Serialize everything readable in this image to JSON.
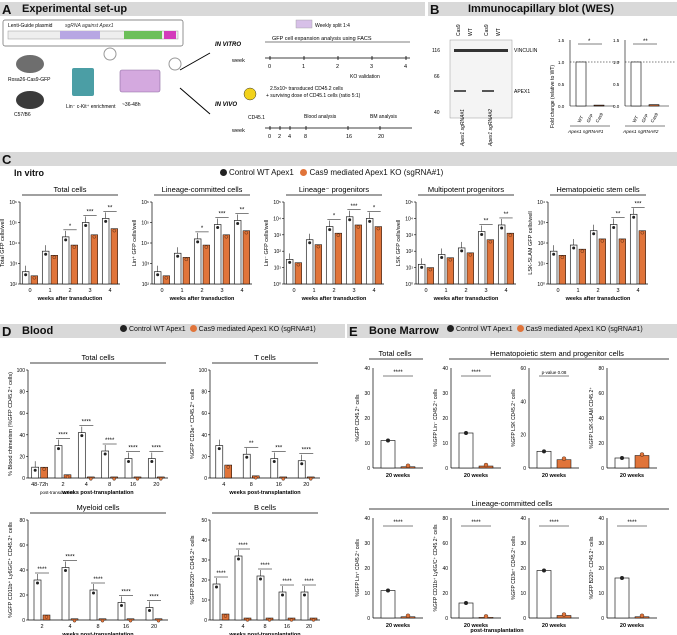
{
  "colors": {
    "control": "#222222",
    "ko": "#e0743a",
    "band": "#d9d9d9"
  },
  "panel_a": {
    "letter": "A",
    "title": "Experimental set-up",
    "plasmid_label": "Lenti-Guide plasmid",
    "sgrna_label": "sgRNA against Apex1",
    "mouse1": "Rosa26-Cas9-GFP",
    "mouse2": "C57/B6",
    "enrich": "Lin⁻ c-Kit⁺ enrichment",
    "time": "~36-48h",
    "in_vitro": "IN VITRO",
    "in_vivo": "IN VIVO",
    "split": "Weekly split 1:4",
    "vitro_text": "GFP cell expansion analysis using FACS",
    "ko_validation": "KO validation",
    "week": "week",
    "vitro_weeks": [
      "0",
      "1",
      "2",
      "3",
      "4"
    ],
    "vivo_text1": "2.5x10⁵ transduced CD45.2 cells",
    "vivo_text2": "+ surviving dose of CD45.1 cells (ratio 5:1)",
    "cd451": "CD45.1",
    "vivo_weeks": [
      "0",
      "2",
      "4",
      "8",
      "16",
      "20"
    ],
    "blood_analysis": "Blood analysis",
    "bm_analysis": "BM analysis"
  },
  "panel_b": {
    "letter": "B",
    "title": "Immunocapillary blot (WES)",
    "mw": [
      "116",
      "66",
      "40"
    ],
    "lanes": [
      "Cas9",
      "WT",
      "Cas9",
      "WT"
    ],
    "vinculin": "VINCULIN",
    "apex1": "APEX1",
    "bottom_labels": [
      "Apex1 sgRNA#1",
      "Apex1 sgRNA#2"
    ],
    "ylabel": "Fold change (relative to WT)",
    "yticks": [
      "0.0",
      "0.5",
      "1.0",
      "1.5"
    ],
    "groups": [
      {
        "xlabels": [
          "WT",
          "GFP",
          "Cas9"
        ],
        "caption": "Apex1 sgRNA#1",
        "sig": "*",
        "values": [
          1.0,
          0.02
        ]
      },
      {
        "xlabels": [
          "WT",
          "GFP",
          "Cas9"
        ],
        "caption": "Apex1 sgRNA#2",
        "sig": "**",
        "values": [
          1.0,
          0.03
        ]
      }
    ]
  },
  "panel_c": {
    "letter": "C",
    "title": "In vitro",
    "legend_control": "Control WT Apex1",
    "legend_ko": "Cas9 mediated Apex1 KO (sgRNA#1)",
    "xlabel": "weeks after transduction",
    "weeks": [
      "0",
      "1",
      "2",
      "3",
      "4"
    ],
    "charts": [
      {
        "title": "Total cells",
        "ylabel": "Total GFP cells/well",
        "yticks": [
          "10²",
          "10³",
          "10⁴",
          "10⁵",
          "10⁶"
        ],
        "sig": [
          "",
          "",
          "*",
          "***",
          "**"
        ],
        "control": [
          2.6,
          3.6,
          4.3,
          5.0,
          5.2
        ],
        "ko": [
          2.4,
          3.4,
          3.9,
          4.4,
          4.7
        ]
      },
      {
        "title": "Lineage-committed cells",
        "ylabel": "Lin⁺ GFP cells/well",
        "yticks": [
          "10²",
          "10³",
          "10⁴",
          "10⁵",
          "10⁶"
        ],
        "sig": [
          "",
          "",
          "*",
          "***",
          "**"
        ],
        "control": [
          2.6,
          3.5,
          4.2,
          4.9,
          5.1
        ],
        "ko": [
          2.4,
          3.3,
          3.9,
          4.4,
          4.6
        ]
      },
      {
        "title": "Lineage⁻ progenitors",
        "ylabel": "Lin⁻ GFP cells/well",
        "yticks": [
          "10⁰",
          "10¹",
          "10²",
          "10³",
          "10⁴",
          "10⁵"
        ],
        "sig": [
          "",
          "",
          "*",
          "***",
          "*"
        ],
        "control": [
          1.5,
          2.7,
          3.5,
          4.1,
          4.0
        ],
        "ko": [
          1.3,
          2.4,
          3.1,
          3.6,
          3.5
        ]
      },
      {
        "title": "Multipotent progenitors",
        "ylabel": "LSK GFP cells/well",
        "yticks": [
          "10⁰",
          "10¹",
          "10²",
          "10³",
          "10⁴",
          "10⁵"
        ],
        "sig": [
          "",
          "",
          "",
          "**",
          "**"
        ],
        "control": [
          1.2,
          1.8,
          2.2,
          3.2,
          3.6
        ],
        "ko": [
          1.0,
          1.6,
          1.9,
          2.7,
          3.1
        ]
      },
      {
        "title": "Hematopoietic stem cells",
        "ylabel": "LSK-SLAM GFP cells/well",
        "yticks": [
          "10⁰",
          "10¹",
          "10²",
          "10³",
          "10⁴"
        ],
        "sig": [
          "",
          "",
          "",
          "**",
          "***"
        ],
        "control": [
          1.6,
          1.9,
          2.6,
          2.9,
          3.4
        ],
        "ko": [
          1.4,
          1.7,
          2.2,
          2.2,
          2.6
        ]
      }
    ]
  },
  "panel_d": {
    "letter": "D",
    "title": "Blood",
    "legend_control": "Control WT Apex1",
    "legend_ko": "Cas9 mediated Apex1 KO (sgRNA#1)",
    "xlabel": "weeks post-transplantation",
    "charts": [
      {
        "title": "Total cells",
        "ylabel": "% Blood chimerism (%GFP CD45.2⁺ cells)",
        "weeks": [
          "48-72h",
          "2",
          "4",
          "8",
          "16",
          "20"
        ],
        "yticks": [
          "0",
          "20",
          "40",
          "60",
          "80",
          "100"
        ],
        "ymax": 100,
        "sig": [
          "",
          "****",
          "****",
          "****",
          "****",
          "****"
        ],
        "control": [
          10,
          30,
          42,
          25,
          18,
          18
        ],
        "ko": [
          10,
          3,
          1,
          1,
          1,
          1
        ],
        "note": "post-transduction"
      },
      {
        "title": "T cells",
        "ylabel": "%GFP CD3e⁺ CD45.2⁺ cells",
        "weeks": [
          "4",
          "8",
          "16",
          "20"
        ],
        "yticks": [
          "0",
          "20",
          "40",
          "60",
          "80",
          "100"
        ],
        "ymax": 100,
        "sig": [
          "",
          "**",
          "***",
          "****"
        ],
        "control": [
          30,
          22,
          18,
          16
        ],
        "ko": [
          12,
          2,
          1,
          1
        ]
      },
      {
        "title": "Myeloid cells",
        "ylabel": "%GFP CD11b⁺ Ly6G/C⁺ CD45.2⁺ cells",
        "weeks": [
          "2",
          "4",
          "8",
          "16",
          "20"
        ],
        "yticks": [
          "0",
          "20",
          "40",
          "60",
          "80"
        ],
        "ymax": 80,
        "sig": [
          "****",
          "****",
          "****",
          "****",
          "****"
        ],
        "control": [
          32,
          42,
          24,
          14,
          10
        ],
        "ko": [
          4,
          1,
          1,
          1,
          1
        ]
      },
      {
        "title": "B cells",
        "ylabel": "%GFP B220⁺ CD45.2⁺ cells",
        "weeks": [
          "2",
          "4",
          "8",
          "16",
          "20"
        ],
        "yticks": [
          "0",
          "10",
          "20",
          "30",
          "40",
          "50"
        ],
        "ymax": 50,
        "sig": [
          "****",
          "****",
          "****",
          "****",
          "****"
        ],
        "control": [
          18,
          32,
          22,
          14,
          14
        ],
        "ko": [
          3,
          1,
          1,
          1,
          1
        ]
      }
    ]
  },
  "panel_e": {
    "letter": "E",
    "title": "Bone Marrow",
    "legend_control": "Control WT Apex1",
    "legend_ko": "Cas9 mediated Apex1 KO (sgRNA#1)",
    "xlabel": "20 weeks",
    "xnote": "post-transplantation",
    "headers": [
      "Total cells",
      "Hematopoietic stem and progenitor cells",
      "Lineage-committed cells"
    ],
    "charts": [
      {
        "ylabel": "%GFP CD45.2⁺ cells",
        "yticks": [
          "0",
          "10",
          "20",
          "30",
          "40"
        ],
        "ymax": 40,
        "sig": "****",
        "control": 11,
        "ko": 0.5
      },
      {
        "ylabel": "%GFP Lin⁻ CD45.2⁺ cells",
        "yticks": [
          "0",
          "10",
          "20",
          "30",
          "40"
        ],
        "ymax": 40,
        "sig": "****",
        "control": 14,
        "ko": 0.8
      },
      {
        "ylabel": "%GFP LSK CD45.2⁺ cells",
        "yticks": [
          "0",
          "20",
          "40",
          "60"
        ],
        "ymax": 60,
        "sig": "p-value 0.08",
        "control": 10,
        "ko": 5
      },
      {
        "ylabel": "%GFP LSK-SLAM CD45.2⁺",
        "yticks": [
          "0",
          "20",
          "40",
          "60",
          "80"
        ],
        "ymax": 80,
        "sig": "",
        "control": 8,
        "ko": 10
      },
      {
        "ylabel": "%GFP Lin⁺ CD45.2⁺ cells",
        "yticks": [
          "0",
          "10",
          "20",
          "30",
          "40"
        ],
        "ymax": 40,
        "sig": "****",
        "control": 11,
        "ko": 0.5
      },
      {
        "ylabel": "%GFP CD11b⁺ Ly6G/C⁺ CD45.2⁺ cells",
        "yticks": [
          "0",
          "20",
          "40",
          "60",
          "80"
        ],
        "ymax": 80,
        "sig": "****",
        "control": 12,
        "ko": 0.5
      },
      {
        "ylabel": "%GFP CD3e⁺ CD45.2⁺ cells",
        "yticks": [
          "0",
          "10",
          "20",
          "30",
          "40"
        ],
        "ymax": 40,
        "sig": "****",
        "control": 19,
        "ko": 1
      },
      {
        "ylabel": "%GFP B220⁺ CD45.2⁺ cells",
        "yticks": [
          "0",
          "10",
          "20",
          "30",
          "40"
        ],
        "ymax": 40,
        "sig": "****",
        "control": 16,
        "ko": 0.5
      }
    ]
  }
}
